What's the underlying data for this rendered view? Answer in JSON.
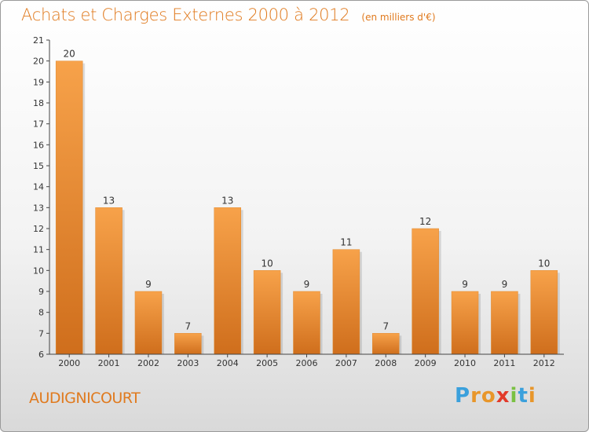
{
  "title": "Achats et Charges Externes 2000 à 2012",
  "unit": "(en milliers d'€)",
  "location": "AUDIGNICOURT",
  "brand": {
    "letters": [
      "P",
      "r",
      "o",
      "x",
      "i",
      "t",
      "i"
    ],
    "colors": [
      "#3aa0dc",
      "#e8962a",
      "#e8962a",
      "#e23a2a",
      "#7ac143",
      "#3aa0dc",
      "#e8962a"
    ]
  },
  "colors": {
    "bar": "#f0913a",
    "bar_dark": "#c96a1a",
    "accent": "#e07a1e"
  },
  "chart_data": {
    "type": "bar",
    "title": "Achats et Charges Externes 2000 à 2012",
    "subtitle": "(en milliers d'€)",
    "categories": [
      "2000",
      "2001",
      "2002",
      "2003",
      "2004",
      "2005",
      "2006",
      "2007",
      "2008",
      "2009",
      "2010",
      "2011",
      "2012"
    ],
    "values": [
      20,
      13,
      9,
      7,
      13,
      10,
      9,
      11,
      7,
      12,
      9,
      9,
      10
    ],
    "xlabel": "",
    "ylabel": "",
    "ylim": [
      6,
      21
    ],
    "yticks": [
      6,
      7,
      8,
      9,
      10,
      11,
      12,
      13,
      14,
      15,
      16,
      17,
      18,
      19,
      20,
      21
    ],
    "grid": false,
    "data_labels": true
  }
}
